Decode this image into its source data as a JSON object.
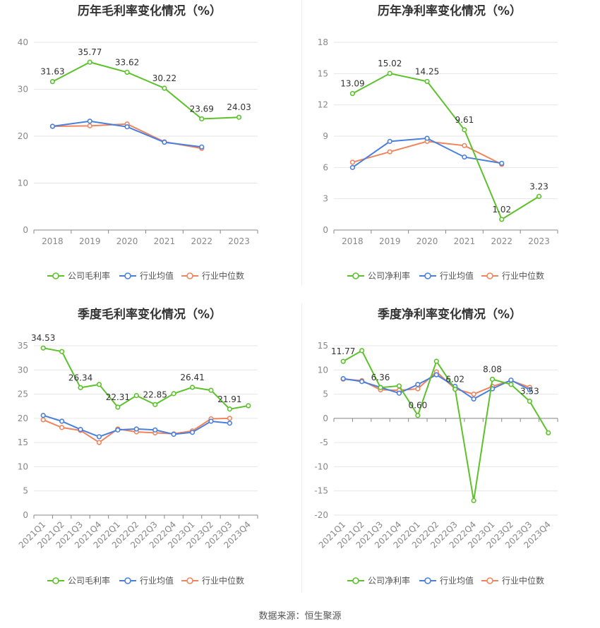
{
  "source": "数据来源：恒生聚源",
  "colors": {
    "company": "#5cc22c",
    "avg": "#4a7fdb",
    "median": "#f0845c"
  },
  "chart_data": [
    {
      "type": "line",
      "title": "历年毛利率变化情况（%）",
      "categories": [
        "2018",
        "2019",
        "2020",
        "2021",
        "2022",
        "2023"
      ],
      "ylim": [
        0,
        40
      ],
      "yticks": [
        0,
        10,
        20,
        30,
        40
      ],
      "grid": true,
      "legend": "bottom",
      "series": [
        {
          "name": "公司毛利率",
          "key": "company",
          "values": [
            31.63,
            35.77,
            33.62,
            30.22,
            23.69,
            24.03
          ],
          "labels": true
        },
        {
          "name": "行业均值",
          "key": "avg",
          "values": [
            22.1,
            23.2,
            22.0,
            18.7,
            17.7,
            null
          ]
        },
        {
          "name": "行业中位数",
          "key": "median",
          "values": [
            22.1,
            22.2,
            22.6,
            18.8,
            17.4,
            null
          ]
        }
      ]
    },
    {
      "type": "line",
      "title": "历年净利率变化情况（%）",
      "categories": [
        "2018",
        "2019",
        "2020",
        "2021",
        "2022",
        "2023"
      ],
      "ylim": [
        0,
        18
      ],
      "yticks": [
        0,
        3,
        6,
        9,
        12,
        15,
        18
      ],
      "grid": true,
      "legend": "bottom",
      "series": [
        {
          "name": "公司净利率",
          "key": "company",
          "values": [
            13.09,
            15.02,
            14.25,
            9.61,
            1.02,
            3.23
          ],
          "labels": true
        },
        {
          "name": "行业均值",
          "key": "avg",
          "values": [
            6.0,
            8.5,
            8.8,
            7.0,
            6.4,
            null
          ]
        },
        {
          "name": "行业中位数",
          "key": "median",
          "values": [
            6.5,
            7.5,
            8.5,
            8.1,
            6.3,
            null
          ]
        }
      ]
    },
    {
      "type": "line",
      "title": "季度毛利率变化情况（%）",
      "categories": [
        "2021Q1",
        "2021Q2",
        "2021Q3",
        "2021Q4",
        "2022Q1",
        "2022Q2",
        "2022Q3",
        "2022Q4",
        "2023Q1",
        "2023Q2",
        "2023Q3",
        "2023Q4"
      ],
      "ylim": [
        0,
        35
      ],
      "yticks": [
        0,
        5,
        10,
        15,
        20,
        25,
        30,
        35
      ],
      "grid": true,
      "legend": "bottom",
      "rotate_xticks": true,
      "series": [
        {
          "name": "公司毛利率",
          "key": "company",
          "values": [
            34.53,
            33.8,
            26.34,
            27.0,
            22.31,
            24.7,
            22.85,
            25.1,
            26.41,
            25.8,
            21.91,
            22.6
          ],
          "label_idx": [
            0,
            2,
            4,
            6,
            8,
            10
          ]
        },
        {
          "name": "行业均值",
          "key": "avg",
          "values": [
            20.6,
            19.4,
            17.7,
            16.2,
            17.6,
            17.8,
            17.6,
            16.7,
            17.1,
            19.4,
            19.0,
            null
          ]
        },
        {
          "name": "行业中位数",
          "key": "median",
          "values": [
            19.7,
            18.1,
            17.5,
            15.0,
            17.8,
            17.2,
            17.0,
            16.8,
            17.4,
            19.9,
            20.0,
            null
          ]
        }
      ]
    },
    {
      "type": "line",
      "title": "季度净利率变化情况（%）",
      "categories": [
        "2021Q1",
        "2021Q2",
        "2021Q3",
        "2021Q4",
        "2022Q1",
        "2022Q2",
        "2022Q3",
        "2022Q4",
        "2023Q1",
        "2023Q2",
        "2023Q3",
        "2023Q4"
      ],
      "ylim": [
        -20,
        15
      ],
      "yticks": [
        -20,
        -15,
        -10,
        -5,
        0,
        5,
        10,
        15
      ],
      "grid": true,
      "legend": "bottom",
      "rotate_xticks": true,
      "series": [
        {
          "name": "公司净利率",
          "key": "company",
          "values": [
            11.77,
            14.0,
            6.36,
            6.7,
            0.6,
            11.8,
            6.02,
            -17.0,
            8.08,
            7.0,
            3.53,
            -3.0
          ],
          "label_idx": [
            0,
            2,
            4,
            6,
            8,
            10
          ]
        },
        {
          "name": "行业均值",
          "key": "avg",
          "values": [
            8.2,
            7.6,
            6.4,
            5.2,
            7.0,
            9.0,
            6.6,
            4.0,
            6.1,
            7.9,
            5.9,
            null
          ]
        },
        {
          "name": "行业中位数",
          "key": "median",
          "values": [
            8.1,
            7.8,
            5.9,
            5.8,
            6.1,
            9.6,
            6.1,
            5.0,
            6.6,
            7.8,
            6.4,
            null
          ]
        }
      ]
    }
  ]
}
